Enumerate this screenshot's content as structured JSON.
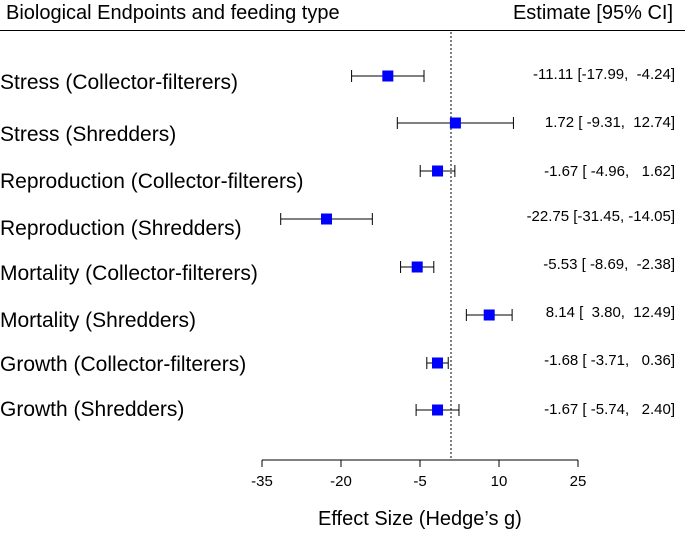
{
  "header": {
    "left": "Biological Endpoints and feeding type",
    "right": "Estimate [95% CI]"
  },
  "chart_data": {
    "type": "forest",
    "xlabel": "Effect Size (Hedge’s g)",
    "xlim": [
      -35,
      25
    ],
    "ticks": [
      -35,
      -20,
      -5,
      10,
      25
    ],
    "reference_line": 0,
    "rows": [
      {
        "label": "Stress (Collector-filterers)",
        "est": -11.11,
        "lo": -17.99,
        "hi": -4.24,
        "text": "-11.11 [-17.99,  -4.24]"
      },
      {
        "label": "Stress (Shredders)",
        "est": 1.72,
        "lo": -9.31,
        "hi": 12.74,
        "text": "1.72 [ -9.31,  12.74]"
      },
      {
        "label": "Reproduction (Collector-filterers)",
        "est": -1.67,
        "lo": -4.96,
        "hi": 1.62,
        "text": "-1.67 [ -4.96,   1.62]"
      },
      {
        "label": "Reproduction (Shredders)",
        "est": -22.75,
        "lo": -31.45,
        "hi": -14.05,
        "text": "-22.75 [-31.45, -14.05]"
      },
      {
        "label": "Mortality (Collector-filterers)",
        "est": -5.53,
        "lo": -8.69,
        "hi": -2.38,
        "text": "-5.53 [ -8.69,  -2.38]"
      },
      {
        "label": "Mortality (Shredders)",
        "est": 8.14,
        "lo": 3.8,
        "hi": 12.49,
        "text": "8.14 [  3.80,  12.49]"
      },
      {
        "label": "Growth (Collector-filterers)",
        "est": -1.68,
        "lo": -3.71,
        "hi": 0.36,
        "text": "-1.68 [ -3.71,   0.36]"
      },
      {
        "label": "Growth (Shredders)",
        "est": -1.67,
        "lo": -5.74,
        "hi": 2.4,
        "text": "-1.67 [ -5.74,   2.40]"
      }
    ],
    "marker_color": "#0000ff"
  }
}
